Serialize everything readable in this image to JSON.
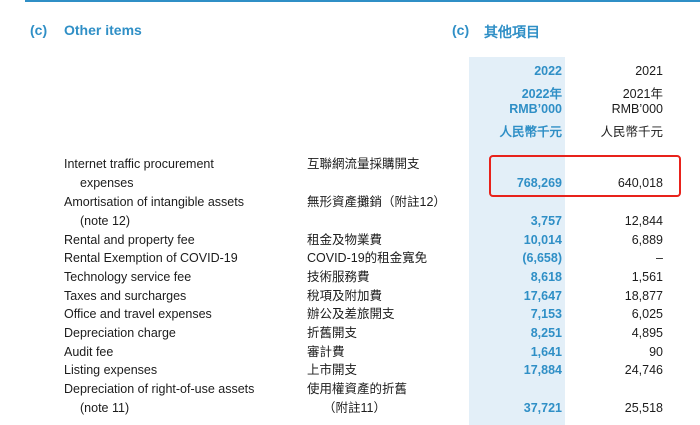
{
  "section": {
    "label_en": "(c)",
    "title_en": "Other items",
    "label_zh": "(c)",
    "title_zh": "其他項目"
  },
  "headers": {
    "y2022": [
      "2022",
      "2022年",
      "RMB’000",
      "人民幣千元"
    ],
    "y2021": [
      "2021",
      "2021年",
      "RMB’000",
      "人民幣千元"
    ]
  },
  "rows": [
    {
      "en": "Internet traffic procurement",
      "zh": "互聯網流量採購開支",
      "v22": "",
      "v21": ""
    },
    {
      "en": "expenses",
      "zh": "",
      "v22": "768,269",
      "v21": "640,018"
    },
    {
      "en": "Amortisation of intangible assets",
      "zh": "無形資產攤銷（附註12）",
      "v22": "",
      "v21": ""
    },
    {
      "en": "(note 12)",
      "zh": "",
      "v22": "3,757",
      "v21": "12,844"
    },
    {
      "en": "Rental and property fee",
      "zh": "租金及物業費",
      "v22": "10,014",
      "v21": "6,889"
    },
    {
      "en": "Rental Exemption of COVID-19",
      "zh": "COVID-19的租金寬免",
      "v22": "(6,658)",
      "v21": "–"
    },
    {
      "en": "Technology service fee",
      "zh": "技術服務費",
      "v22": "8,618",
      "v21": "1,561"
    },
    {
      "en": "Taxes and surcharges",
      "zh": "稅項及附加費",
      "v22": "17,647",
      "v21": "18,877"
    },
    {
      "en": "Office and travel expenses",
      "zh": "辦公及差旅開支",
      "v22": "7,153",
      "v21": "6,025"
    },
    {
      "en": "Depreciation charge",
      "zh": "折舊開支",
      "v22": "8,251",
      "v21": "4,895"
    },
    {
      "en": "Audit fee",
      "zh": "審計費",
      "v22": "1,641",
      "v21": "90"
    },
    {
      "en": "Listing expenses",
      "zh": "上市開支",
      "v22": "17,884",
      "v21": "24,746"
    },
    {
      "en": "Depreciation of right-of-use assets",
      "zh": "使用權資產的折舊",
      "v22": "",
      "v21": ""
    },
    {
      "en": "(note 11)",
      "zh": "（附註11）",
      "v22": "37,721",
      "v21": "25,518"
    }
  ],
  "colors": {
    "accent": "#2f8fc6",
    "highlight": "#e8221b",
    "band": "#e3eff8"
  }
}
